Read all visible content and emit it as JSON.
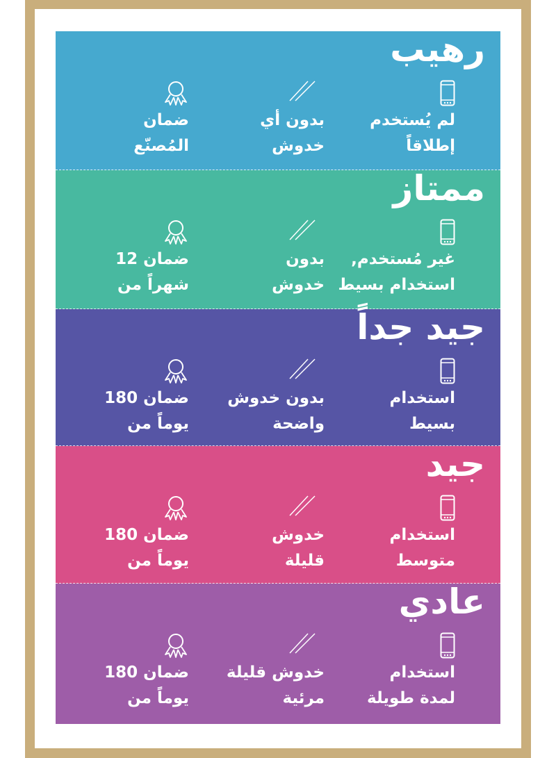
{
  "frame_color": "#c9ae7c",
  "icons": {
    "col1": "phone-icon",
    "col2": "scratch-lines-icon",
    "col3": "award-medal-icon"
  },
  "sections": [
    {
      "title": "رهيب",
      "color": "#46a9cf",
      "usage": [
        "لم يُستخدم",
        "إطلاقاً"
      ],
      "scratches": [
        "بدون أي",
        "خدوش"
      ],
      "warranty": [
        "ضمان",
        "المُصنّع"
      ]
    },
    {
      "title": "ممتاز",
      "color": "#48b9a0",
      "usage": [
        "غير مُستخدم,",
        "استخدام بسيط"
      ],
      "scratches": [
        "بدون",
        "خدوش"
      ],
      "warranty": [
        "ضمان 12",
        "شهراً من"
      ]
    },
    {
      "title": "جيد جداً",
      "color": "#5655a5",
      "usage": [
        "استخدام",
        "بسيط"
      ],
      "scratches": [
        "بدون خدوش",
        "واضحة"
      ],
      "warranty": [
        "ضمان 180",
        "يوماً من"
      ]
    },
    {
      "title": "جيد",
      "color": "#d94f88",
      "usage": [
        "استخدام",
        "متوسط"
      ],
      "scratches": [
        "خدوش",
        "قليلة"
      ],
      "warranty": [
        "ضمان 180",
        "يوماً من"
      ]
    },
    {
      "title": "عادي",
      "color": "#9e5da8",
      "usage": [
        "استخدام",
        "لمدة طويلة"
      ],
      "scratches": [
        "خدوش قليلة",
        "مرئية"
      ],
      "warranty": [
        "ضمان 180",
        "يوماً من"
      ]
    }
  ]
}
